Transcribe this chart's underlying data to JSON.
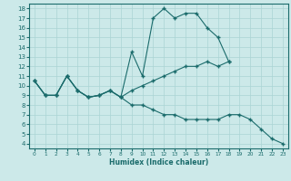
{
  "bg_color": "#cce9e9",
  "grid_color": "#aad4d4",
  "line_color": "#1a6b6b",
  "xlabel": "Humidex (Indice chaleur)",
  "xlim": [
    -0.5,
    23.5
  ],
  "ylim": [
    3.5,
    18.5
  ],
  "xticks": [
    0,
    1,
    2,
    3,
    4,
    5,
    6,
    7,
    8,
    9,
    10,
    11,
    12,
    13,
    14,
    15,
    16,
    17,
    18,
    19,
    20,
    21,
    22,
    23
  ],
  "yticks": [
    4,
    5,
    6,
    7,
    8,
    9,
    10,
    11,
    12,
    13,
    14,
    15,
    16,
    17,
    18
  ],
  "line1_x": [
    0,
    1,
    2,
    3,
    4,
    5,
    6,
    7,
    8,
    9,
    10,
    11,
    12,
    13,
    14,
    15,
    16,
    17,
    18
  ],
  "line1_y": [
    10.5,
    9,
    9,
    11,
    9.5,
    8.8,
    9,
    9.5,
    8.8,
    13.5,
    11,
    17,
    18,
    17,
    17.5,
    17.5,
    16,
    15,
    12.5
  ],
  "line2_x": [
    0,
    1,
    2,
    3,
    4,
    5,
    6,
    7,
    8,
    9,
    10,
    11,
    12,
    13,
    14,
    15,
    16,
    17,
    18
  ],
  "line2_y": [
    10.5,
    9,
    9,
    11,
    9.5,
    8.8,
    9,
    9.5,
    8.8,
    9.5,
    10,
    10.5,
    11,
    11.5,
    12,
    12,
    12.5,
    12,
    12.5
  ],
  "line3_x": [
    0,
    1,
    2,
    3,
    4,
    5,
    6,
    7,
    8,
    9,
    10,
    11,
    12,
    13,
    14,
    15,
    16,
    17,
    18,
    19,
    20,
    21,
    22,
    23
  ],
  "line3_y": [
    10.5,
    9,
    9,
    11,
    9.5,
    8.8,
    9,
    9.5,
    8.8,
    8,
    8,
    7.5,
    7,
    7,
    6.5,
    6.5,
    6.5,
    6.5,
    7,
    7,
    6.5,
    5.5,
    4.5,
    4
  ]
}
